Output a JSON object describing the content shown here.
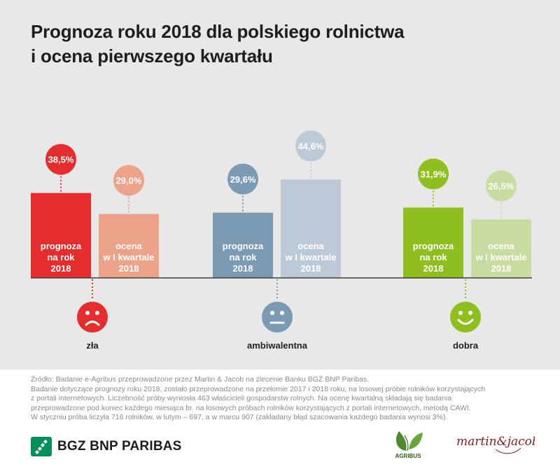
{
  "title": {
    "line1": "Prognoza roku 2018 dla polskiego rolnictwa",
    "line2": "i ocena pierwszego kwartału"
  },
  "chart_data": {
    "type": "bar",
    "title": "Prognoza roku 2018 dla polskiego rolnictwa i ocena pierwszego kwartału",
    "categories": [
      "zła",
      "ambiwalentna",
      "dobra"
    ],
    "series": [
      {
        "name": "prognoza na rok 2018",
        "values": [
          38.5,
          29.6,
          31.9
        ]
      },
      {
        "name": "ocena w I kwartale 2018",
        "values": [
          29.0,
          44.6,
          26.5
        ]
      }
    ],
    "value_labels": [
      [
        "38,5%",
        "29,6%",
        "31,9%"
      ],
      [
        "29,0%",
        "44,6%",
        "26,5%"
      ]
    ],
    "bar_text": [
      [
        "prognoza",
        "na rok",
        "2018"
      ],
      [
        "ocena",
        "w I kwartale",
        "2018"
      ]
    ],
    "colors": {
      "zła": [
        "#e52d2d",
        "#eda28a"
      ],
      "ambiwalentna": [
        "#7b9ab3",
        "#bccad8"
      ],
      "dobra": [
        "#8fbf1e",
        "#c8dca0"
      ]
    },
    "face_icons": [
      "sad-face-icon",
      "neutral-face-icon",
      "happy-face-icon"
    ],
    "face_colors": [
      "#e52d2d",
      "#7b9ab3",
      "#8fbf1e"
    ],
    "ylim": [
      0,
      50
    ],
    "grid": false,
    "legend": "none"
  },
  "footnote": [
    "Źródło: Badanie e-Agribus przeprowadzone przez Martin & Jacob na zlecenie Banku BGŻ BNP Paribas.",
    "Badanie dotyczące prognozy roku 2018, zostało przeprowadzone na przełomie 2017 i 2018 roku, na losowej próbie rolników korzystających",
    "z portali internetowych. Liczebność próby wyniosła 463 właścicieli gospodarstw rolnych. Na ocenę kwartalną składają się badania",
    "przeprowadzone pod koniec każdego miesiąca br. na losowych próbach rolników korzystających z portali internetowych, metodą CAWI.",
    "W styczniu próba liczyła 716 rolników, w lutym – 697, a w marcu 907 (zakładany błąd szacowania każdego badania wynosi 3%)."
  ],
  "logos": {
    "bank": "BGZ BNP PARIBAS",
    "agribus": "AGRIBUS",
    "agency": "martin&jacob"
  },
  "colors": {
    "panel": "#e8e8e8",
    "baseline": "#3c3c3c",
    "bank_green": "#00915a"
  }
}
